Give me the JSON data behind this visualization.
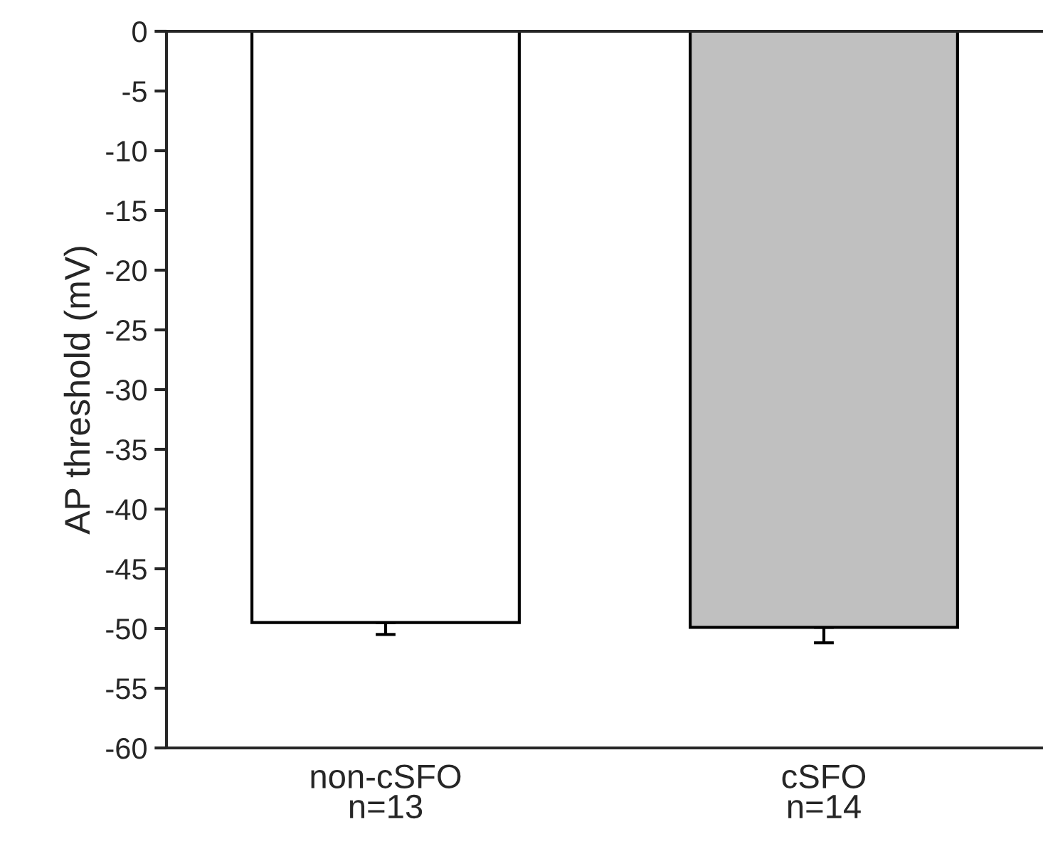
{
  "chart_data": {
    "type": "bar",
    "ylabel": "AP threshold (mV)",
    "categories": [
      "non-cSFO\nn=13",
      "cSFO\nn=14"
    ],
    "values": [
      -49.5,
      -49.9
    ],
    "colors": [
      "#ffffff",
      "#c0c0c0"
    ],
    "errors": [
      [
        -50.5,
        -49.5
      ],
      [
        -51.2,
        -49.9
      ]
    ],
    "ylim": [
      -60,
      0
    ],
    "yticks": [
      -60,
      -55,
      -50,
      -45,
      -40,
      -35,
      -30,
      -25,
      -20,
      -15,
      -10,
      -5,
      0
    ],
    "grid": false,
    "legend": false
  }
}
